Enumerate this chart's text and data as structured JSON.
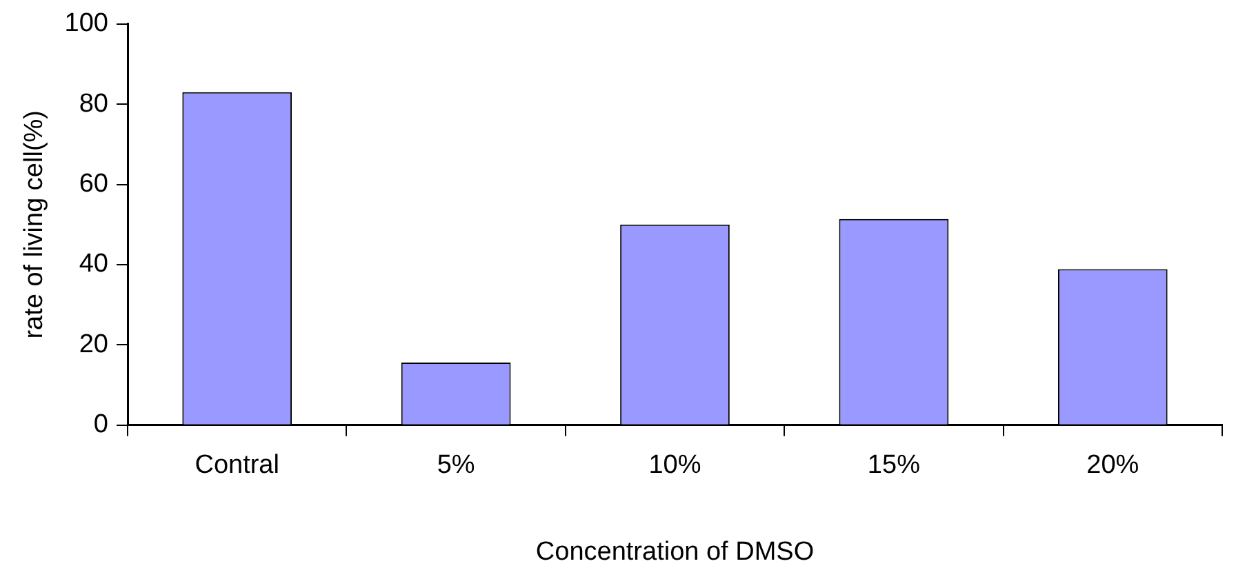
{
  "chart_data": {
    "type": "bar",
    "xlabel": "Concentration of DMSO",
    "ylabel": "rate of living cell(%)",
    "categories": [
      "Contral",
      "5%",
      "10%",
      "15%",
      "20%"
    ],
    "values": [
      83,
      15.6,
      50,
      51.4,
      38.9
    ],
    "color": "#9999ff",
    "ylim": [
      0,
      100
    ],
    "yticks": [
      0,
      20,
      40,
      60,
      80,
      100
    ],
    "grid": false,
    "legend": false
  }
}
